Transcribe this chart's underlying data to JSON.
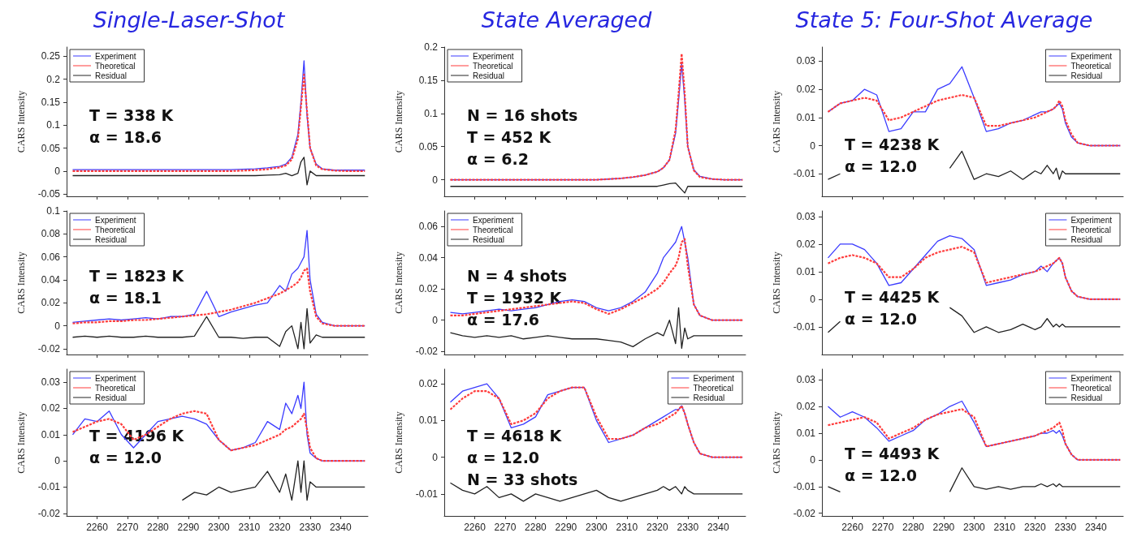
{
  "chart_data": [
    {
      "type": "line",
      "title": "Single-Laser-Shot",
      "ylabel": "CARS Intensity",
      "annotations": [
        "T = 338 K",
        "α = 18.6"
      ],
      "legend": "top left",
      "marker": "none",
      "grid": false,
      "tick_labels": "y",
      "x": [
        2252,
        2256,
        2260,
        2264,
        2268,
        2272,
        2276,
        2280,
        2284,
        2288,
        2292,
        2296,
        2300,
        2304,
        2308,
        2312,
        2316,
        2320,
        2322,
        2324,
        2326,
        2327,
        2328,
        2329,
        2330,
        2332,
        2334,
        2338,
        2342,
        2348
      ],
      "xlim": [
        2250,
        2349
      ],
      "xticks": [
        2260,
        2270,
        2280,
        2290,
        2300,
        2310,
        2320,
        2330,
        2340
      ],
      "ylim": [
        -0.055,
        0.27
      ],
      "yticks": [
        -0.05,
        0,
        0.05,
        0.1,
        0.15,
        0.2,
        0.25
      ],
      "series": [
        {
          "name": "Experiment",
          "color": "#3b3bff",
          "line_style": "solid",
          "values": [
            0.003,
            0.003,
            0.003,
            0.003,
            0.003,
            0.003,
            0.003,
            0.003,
            0.003,
            0.003,
            0.003,
            0.003,
            0.003,
            0.003,
            0.004,
            0.005,
            0.007,
            0.01,
            0.015,
            0.03,
            0.08,
            0.15,
            0.24,
            0.12,
            0.05,
            0.015,
            0.005,
            0.002,
            0.002,
            0.002
          ]
        },
        {
          "name": "Theoretical",
          "color": "#ff3b3b",
          "line_style": "dashed",
          "values": [
            0,
            0,
            0,
            0,
            0,
            0,
            0,
            0,
            0,
            0,
            0,
            0,
            0,
            0,
            0.001,
            0.002,
            0.004,
            0.008,
            0.012,
            0.025,
            0.07,
            0.14,
            0.21,
            0.13,
            0.05,
            0.012,
            0.004,
            0.001,
            0,
            0
          ]
        },
        {
          "name": "Residual",
          "color": "#222222",
          "line_style": "solid",
          "values": [
            -0.01,
            -0.01,
            -0.01,
            -0.01,
            -0.01,
            -0.01,
            -0.01,
            -0.01,
            -0.01,
            -0.01,
            -0.01,
            -0.01,
            -0.01,
            -0.01,
            -0.01,
            -0.01,
            -0.009,
            -0.008,
            -0.005,
            -0.01,
            -0.005,
            0.02,
            0.03,
            -0.03,
            0,
            -0.01,
            -0.01,
            -0.01,
            -0.01,
            -0.01
          ]
        }
      ]
    },
    {
      "type": "line",
      "title": "State Averaged",
      "ylabel": "CARS Intensity",
      "annotations": [
        "N = 16 shots",
        "T = 452 K",
        "α = 6.2"
      ],
      "legend": "top left",
      "marker": "none",
      "grid": false,
      "tick_labels": "y",
      "x": [
        2252,
        2256,
        2260,
        2264,
        2268,
        2272,
        2276,
        2280,
        2284,
        2288,
        2292,
        2296,
        2300,
        2304,
        2308,
        2312,
        2316,
        2320,
        2322,
        2324,
        2326,
        2327,
        2328,
        2329,
        2330,
        2332,
        2334,
        2338,
        2342,
        2348
      ],
      "xlim": [
        2250,
        2349
      ],
      "xticks": [
        2260,
        2270,
        2280,
        2290,
        2300,
        2310,
        2320,
        2330,
        2340
      ],
      "ylim": [
        -0.025,
        0.2
      ],
      "yticks": [
        0,
        0.05,
        0.1,
        0.15,
        0.2
      ],
      "series": [
        {
          "name": "Experiment",
          "color": "#3b3bff",
          "line_style": "solid",
          "values": [
            0,
            0,
            0,
            0,
            0,
            0,
            0,
            0,
            0,
            0,
            0,
            0,
            0,
            0.001,
            0.002,
            0.004,
            0.007,
            0.012,
            0.018,
            0.03,
            0.07,
            0.12,
            0.175,
            0.12,
            0.05,
            0.015,
            0.005,
            0.001,
            0,
            0
          ]
        },
        {
          "name": "Theoretical",
          "color": "#ff3b3b",
          "line_style": "dashed",
          "values": [
            0,
            0,
            0,
            0,
            0,
            0,
            0,
            0,
            0,
            0,
            0,
            0,
            0,
            0.001,
            0.002,
            0.004,
            0.007,
            0.012,
            0.018,
            0.03,
            0.075,
            0.13,
            0.19,
            0.13,
            0.05,
            0.014,
            0.004,
            0.001,
            0,
            0
          ]
        },
        {
          "name": "Residual",
          "color": "#222222",
          "line_style": "solid",
          "values": [
            -0.01,
            -0.01,
            -0.01,
            -0.01,
            -0.01,
            -0.01,
            -0.01,
            -0.01,
            -0.01,
            -0.01,
            -0.01,
            -0.01,
            -0.01,
            -0.01,
            -0.01,
            -0.01,
            -0.01,
            -0.01,
            -0.008,
            -0.006,
            -0.005,
            -0.01,
            -0.015,
            -0.02,
            -0.01,
            -0.01,
            -0.01,
            -0.01,
            -0.01,
            -0.01
          ]
        }
      ]
    },
    {
      "type": "line",
      "title": "State 5: Four-Shot Average",
      "ylabel": "CARS Intensity",
      "annotations": [
        "T = 4238 K",
        "α = 12.0"
      ],
      "legend": "top right",
      "marker": "none",
      "grid": false,
      "tick_labels": "y",
      "x": [
        2252,
        2256,
        2260,
        2264,
        2268,
        2272,
        2276,
        2280,
        2284,
        2288,
        2292,
        2296,
        2300,
        2304,
        2308,
        2312,
        2316,
        2320,
        2322,
        2324,
        2326,
        2327,
        2328,
        2329,
        2330,
        2332,
        2334,
        2338,
        2342,
        2348
      ],
      "xlim": [
        2250,
        2349
      ],
      "xticks": [
        2260,
        2270,
        2280,
        2290,
        2300,
        2310,
        2320,
        2330,
        2340
      ],
      "ylim": [
        -0.018,
        0.035
      ],
      "yticks": [
        -0.01,
        0,
        0.01,
        0.02,
        0.03
      ],
      "series": [
        {
          "name": "Experiment",
          "color": "#3b3bff",
          "line_style": "solid",
          "values": [
            0.012,
            0.015,
            0.016,
            0.02,
            0.018,
            0.005,
            0.006,
            0.012,
            0.012,
            0.02,
            0.022,
            0.028,
            0.017,
            0.005,
            0.006,
            0.008,
            0.009,
            0.011,
            0.012,
            0.012,
            0.013,
            0.014,
            0.015,
            0.013,
            0.008,
            0.003,
            0.001,
            0,
            0,
            0
          ]
        },
        {
          "name": "Theoretical",
          "color": "#ff3b3b",
          "line_style": "dashed",
          "values": [
            0.012,
            0.015,
            0.016,
            0.017,
            0.016,
            0.009,
            0.01,
            0.012,
            0.014,
            0.016,
            0.017,
            0.018,
            0.017,
            0.007,
            0.007,
            0.008,
            0.009,
            0.01,
            0.011,
            0.012,
            0.013,
            0.014,
            0.016,
            0.014,
            0.009,
            0.004,
            0.001,
            0,
            0,
            0
          ]
        },
        {
          "name": "Residual",
          "color": "#222222",
          "line_style": "solid",
          "values": [
            -0.012,
            -0.01,
            null,
            null,
            null,
            null,
            null,
            null,
            null,
            null,
            -0.008,
            -0.002,
            -0.012,
            -0.01,
            -0.011,
            -0.009,
            -0.012,
            -0.009,
            -0.01,
            -0.007,
            -0.01,
            -0.008,
            -0.012,
            -0.009,
            -0.01,
            -0.01,
            -0.01,
            -0.01,
            -0.01,
            -0.01
          ]
        }
      ]
    },
    {
      "type": "line",
      "ylabel": "CARS Intensity",
      "annotations": [
        "T = 1823 K",
        "α = 18.1"
      ],
      "legend": "top left",
      "marker": "none",
      "grid": false,
      "tick_labels": "y",
      "x": [
        2252,
        2256,
        2260,
        2264,
        2268,
        2272,
        2276,
        2280,
        2284,
        2288,
        2292,
        2296,
        2300,
        2304,
        2308,
        2312,
        2316,
        2320,
        2322,
        2324,
        2326,
        2327,
        2328,
        2329,
        2330,
        2332,
        2334,
        2338,
        2342,
        2348
      ],
      "xlim": [
        2250,
        2349
      ],
      "xticks": [
        2260,
        2270,
        2280,
        2290,
        2300,
        2310,
        2320,
        2330,
        2340
      ],
      "ylim": [
        -0.025,
        0.1
      ],
      "yticks": [
        -0.02,
        0,
        0.02,
        0.04,
        0.06,
        0.08,
        0.1
      ],
      "series": [
        {
          "name": "Experiment",
          "color": "#3b3bff",
          "line_style": "solid",
          "values": [
            0.003,
            0.004,
            0.005,
            0.006,
            0.005,
            0.006,
            0.007,
            0.006,
            0.008,
            0.008,
            0.01,
            0.03,
            0.008,
            0.012,
            0.015,
            0.018,
            0.02,
            0.035,
            0.03,
            0.045,
            0.05,
            0.055,
            0.06,
            0.083,
            0.04,
            0.01,
            0.003,
            0,
            0,
            0
          ]
        },
        {
          "name": "Theoretical",
          "color": "#ff3b3b",
          "line_style": "dashed",
          "values": [
            0.002,
            0.003,
            0.003,
            0.004,
            0.004,
            0.005,
            0.005,
            0.006,
            0.007,
            0.008,
            0.009,
            0.01,
            0.012,
            0.014,
            0.017,
            0.02,
            0.024,
            0.028,
            0.031,
            0.034,
            0.038,
            0.042,
            0.048,
            0.05,
            0.03,
            0.008,
            0.002,
            0,
            0,
            0
          ]
        },
        {
          "name": "Residual",
          "color": "#222222",
          "line_style": "solid",
          "values": [
            -0.01,
            -0.009,
            -0.01,
            -0.009,
            -0.01,
            -0.01,
            -0.009,
            -0.01,
            -0.01,
            -0.01,
            -0.009,
            0.008,
            -0.01,
            -0.01,
            -0.011,
            -0.01,
            -0.01,
            -0.018,
            -0.005,
            0,
            -0.02,
            0.003,
            -0.02,
            0.015,
            -0.015,
            -0.008,
            -0.01,
            -0.01,
            -0.01,
            -0.01
          ]
        }
      ]
    },
    {
      "type": "line",
      "ylabel": "CARS Intensity",
      "annotations": [
        "N = 4 shots",
        "T = 1932 K",
        "α = 17.6"
      ],
      "legend": "top left",
      "marker": "none",
      "grid": false,
      "tick_labels": "y",
      "x": [
        2252,
        2256,
        2260,
        2264,
        2268,
        2272,
        2276,
        2280,
        2284,
        2288,
        2292,
        2296,
        2300,
        2304,
        2308,
        2312,
        2316,
        2320,
        2322,
        2324,
        2326,
        2327,
        2328,
        2329,
        2330,
        2332,
        2334,
        2338,
        2342,
        2348
      ],
      "xlim": [
        2250,
        2349
      ],
      "xticks": [
        2260,
        2270,
        2280,
        2290,
        2300,
        2310,
        2320,
        2330,
        2340
      ],
      "ylim": [
        -0.022,
        0.07
      ],
      "yticks": [
        -0.02,
        0,
        0.02,
        0.04,
        0.06
      ],
      "series": [
        {
          "name": "Experiment",
          "color": "#3b3bff",
          "line_style": "solid",
          "values": [
            0.005,
            0.004,
            0.005,
            0.006,
            0.007,
            0.006,
            0.007,
            0.008,
            0.01,
            0.012,
            0.013,
            0.012,
            0.008,
            0.006,
            0.008,
            0.012,
            0.018,
            0.03,
            0.04,
            0.045,
            0.05,
            0.055,
            0.06,
            0.05,
            0.04,
            0.01,
            0.003,
            0,
            0,
            0
          ]
        },
        {
          "name": "Theoretical",
          "color": "#ff3b3b",
          "line_style": "dashed",
          "values": [
            0.003,
            0.003,
            0.004,
            0.005,
            0.006,
            0.007,
            0.008,
            0.009,
            0.01,
            0.011,
            0.012,
            0.011,
            0.007,
            0.004,
            0.007,
            0.011,
            0.015,
            0.02,
            0.024,
            0.03,
            0.035,
            0.04,
            0.05,
            0.052,
            0.035,
            0.01,
            0.003,
            0,
            0,
            0
          ]
        },
        {
          "name": "Residual",
          "color": "#222222",
          "line_style": "solid",
          "values": [
            -0.008,
            -0.01,
            -0.011,
            -0.01,
            -0.011,
            -0.01,
            -0.012,
            -0.011,
            -0.01,
            -0.011,
            -0.012,
            -0.012,
            -0.012,
            -0.013,
            -0.014,
            -0.017,
            -0.012,
            -0.008,
            -0.01,
            0,
            -0.015,
            0.008,
            -0.018,
            -0.005,
            -0.012,
            -0.01,
            -0.01,
            -0.01,
            -0.01,
            -0.01
          ]
        }
      ]
    },
    {
      "type": "line",
      "ylabel": "CARS Intensity",
      "annotations": [
        "T = 4425 K",
        "α = 12.0"
      ],
      "legend": "top right",
      "marker": "none",
      "grid": false,
      "tick_labels": "y",
      "x": [
        2252,
        2256,
        2260,
        2264,
        2268,
        2272,
        2276,
        2280,
        2284,
        2288,
        2292,
        2296,
        2300,
        2304,
        2308,
        2312,
        2316,
        2320,
        2322,
        2324,
        2326,
        2327,
        2328,
        2329,
        2330,
        2332,
        2334,
        2338,
        2342,
        2348
      ],
      "xlim": [
        2250,
        2349
      ],
      "xticks": [
        2260,
        2270,
        2280,
        2290,
        2300,
        2310,
        2320,
        2330,
        2340
      ],
      "ylim": [
        -0.02,
        0.032
      ],
      "yticks": [
        -0.01,
        0,
        0.01,
        0.02,
        0.03
      ],
      "series": [
        {
          "name": "Experiment",
          "color": "#3b3bff",
          "line_style": "solid",
          "values": [
            0.015,
            0.02,
            0.02,
            0.018,
            0.013,
            0.005,
            0.006,
            0.011,
            0.016,
            0.021,
            0.023,
            0.022,
            0.018,
            0.005,
            0.006,
            0.007,
            0.009,
            0.01,
            0.012,
            0.01,
            0.013,
            0.014,
            0.015,
            0.013,
            0.008,
            0.003,
            0.001,
            0,
            0,
            0
          ]
        },
        {
          "name": "Theoretical",
          "color": "#ff3b3b",
          "line_style": "dashed",
          "values": [
            0.013,
            0.015,
            0.016,
            0.015,
            0.013,
            0.008,
            0.008,
            0.011,
            0.015,
            0.017,
            0.018,
            0.019,
            0.017,
            0.006,
            0.007,
            0.008,
            0.009,
            0.01,
            0.011,
            0.012,
            0.013,
            0.014,
            0.015,
            0.013,
            0.008,
            0.003,
            0.001,
            0,
            0,
            0
          ]
        },
        {
          "name": "Residual",
          "color": "#222222",
          "line_style": "solid",
          "values": [
            -0.012,
            -0.008,
            null,
            null,
            null,
            null,
            null,
            null,
            null,
            null,
            -0.003,
            -0.006,
            -0.012,
            -0.01,
            -0.012,
            -0.011,
            -0.009,
            -0.011,
            -0.01,
            -0.007,
            -0.01,
            -0.009,
            -0.01,
            -0.009,
            -0.01,
            -0.01,
            -0.01,
            -0.01,
            -0.01,
            -0.01
          ]
        }
      ]
    },
    {
      "type": "line",
      "ylabel": "CARS Intensity",
      "annotations": [
        "T = 4196 K",
        "α = 12.0"
      ],
      "legend": "top left",
      "marker": "none",
      "grid": false,
      "x": [
        2252,
        2256,
        2260,
        2264,
        2268,
        2272,
        2276,
        2280,
        2284,
        2288,
        2292,
        2296,
        2300,
        2304,
        2308,
        2312,
        2316,
        2320,
        2322,
        2324,
        2326,
        2327,
        2328,
        2329,
        2330,
        2332,
        2334,
        2338,
        2342,
        2348
      ],
      "xlim": [
        2250,
        2349
      ],
      "xticks": [
        2260,
        2270,
        2280,
        2290,
        2300,
        2310,
        2320,
        2330,
        2340
      ],
      "ylim": [
        -0.021,
        0.035
      ],
      "yticks": [
        -0.02,
        -0.01,
        0,
        0.01,
        0.02,
        0.03
      ],
      "series": [
        {
          "name": "Experiment",
          "color": "#3b3bff",
          "line_style": "solid",
          "values": [
            0.01,
            0.016,
            0.015,
            0.019,
            0.01,
            0.005,
            0.01,
            0.015,
            0.016,
            0.017,
            0.016,
            0.014,
            0.008,
            0.004,
            0.005,
            0.007,
            0.015,
            0.012,
            0.022,
            0.018,
            0.025,
            0.02,
            0.03,
            0.01,
            0.003,
            0.001,
            0,
            0,
            0,
            0
          ]
        },
        {
          "name": "Theoretical",
          "color": "#ff3b3b",
          "line_style": "dashed",
          "values": [
            0.011,
            0.013,
            0.015,
            0.016,
            0.014,
            0.008,
            0.01,
            0.013,
            0.016,
            0.018,
            0.019,
            0.018,
            0.008,
            0.004,
            0.005,
            0.006,
            0.008,
            0.01,
            0.012,
            0.013,
            0.015,
            0.016,
            0.018,
            0.012,
            0.005,
            0.001,
            0,
            0,
            0,
            0
          ]
        },
        {
          "name": "Residual",
          "color": "#222222",
          "line_style": "solid",
          "values": [
            null,
            null,
            null,
            null,
            null,
            null,
            null,
            null,
            null,
            -0.015,
            -0.012,
            -0.013,
            -0.01,
            -0.012,
            -0.011,
            -0.01,
            -0.004,
            -0.012,
            -0.005,
            -0.015,
            0,
            -0.012,
            0,
            -0.015,
            -0.008,
            -0.01,
            -0.01,
            -0.01,
            -0.01,
            -0.01
          ]
        }
      ]
    },
    {
      "type": "line",
      "ylabel": "CARS Intensity",
      "annotations": [
        "T = 4618 K",
        "α = 12.0",
        "N = 33 shots"
      ],
      "legend": "top right",
      "marker": "none",
      "grid": false,
      "x": [
        2252,
        2256,
        2260,
        2264,
        2268,
        2272,
        2276,
        2280,
        2284,
        2288,
        2292,
        2296,
        2300,
        2304,
        2308,
        2312,
        2316,
        2320,
        2322,
        2324,
        2326,
        2327,
        2328,
        2329,
        2330,
        2332,
        2334,
        2338,
        2342,
        2348
      ],
      "xlim": [
        2250,
        2349
      ],
      "xticks": [
        2260,
        2270,
        2280,
        2290,
        2300,
        2310,
        2320,
        2330,
        2340
      ],
      "ylim": [
        -0.016,
        0.024
      ],
      "yticks": [
        -0.01,
        0,
        0.01,
        0.02
      ],
      "series": [
        {
          "name": "Experiment",
          "color": "#3b3bff",
          "line_style": "solid",
          "values": [
            0.015,
            0.018,
            0.019,
            0.02,
            0.016,
            0.008,
            0.009,
            0.011,
            0.017,
            0.018,
            0.019,
            0.019,
            0.01,
            0.004,
            0.005,
            0.006,
            0.008,
            0.01,
            0.011,
            0.012,
            0.013,
            0.013,
            0.014,
            0.012,
            0.009,
            0.004,
            0.001,
            0,
            0,
            0
          ]
        },
        {
          "name": "Theoretical",
          "color": "#ff3b3b",
          "line_style": "dashed",
          "values": [
            0.013,
            0.016,
            0.018,
            0.018,
            0.016,
            0.009,
            0.01,
            0.012,
            0.016,
            0.018,
            0.019,
            0.019,
            0.011,
            0.005,
            0.005,
            0.006,
            0.008,
            0.009,
            0.01,
            0.011,
            0.012,
            0.013,
            0.014,
            0.012,
            0.009,
            0.004,
            0.001,
            0,
            0,
            0
          ]
        },
        {
          "name": "Residual",
          "color": "#222222",
          "line_style": "solid",
          "values": [
            -0.007,
            -0.009,
            -0.01,
            -0.008,
            -0.011,
            -0.01,
            -0.012,
            -0.01,
            -0.011,
            -0.012,
            -0.011,
            -0.01,
            -0.009,
            -0.011,
            -0.012,
            -0.011,
            -0.01,
            -0.009,
            -0.008,
            -0.009,
            -0.008,
            -0.009,
            -0.01,
            -0.008,
            -0.009,
            -0.01,
            -0.01,
            -0.01,
            -0.01,
            -0.01
          ]
        }
      ]
    },
    {
      "type": "line",
      "ylabel": "CARS Intensity",
      "annotations": [
        "T = 4493 K",
        "α = 12.0"
      ],
      "legend": "top right",
      "marker": "none",
      "grid": false,
      "x": [
        2252,
        2256,
        2260,
        2264,
        2268,
        2272,
        2276,
        2280,
        2284,
        2288,
        2292,
        2296,
        2300,
        2304,
        2308,
        2312,
        2316,
        2320,
        2322,
        2324,
        2326,
        2327,
        2328,
        2329,
        2330,
        2332,
        2334,
        2338,
        2342,
        2348
      ],
      "xlim": [
        2250,
        2349
      ],
      "xticks": [
        2260,
        2270,
        2280,
        2290,
        2300,
        2310,
        2320,
        2330,
        2340
      ],
      "ylim": [
        -0.021,
        0.034
      ],
      "yticks": [
        -0.02,
        -0.01,
        0,
        0.01,
        0.02,
        0.03
      ],
      "series": [
        {
          "name": "Experiment",
          "color": "#3b3bff",
          "line_style": "solid",
          "values": [
            0.02,
            0.016,
            0.018,
            0.016,
            0.012,
            0.007,
            0.009,
            0.011,
            0.015,
            0.017,
            0.02,
            0.022,
            0.014,
            0.005,
            0.006,
            0.007,
            0.008,
            0.009,
            0.01,
            0.01,
            0.011,
            0.01,
            0.011,
            0.009,
            0.006,
            0.002,
            0,
            0,
            0,
            0
          ]
        },
        {
          "name": "Theoretical",
          "color": "#ff3b3b",
          "line_style": "dashed",
          "values": [
            0.013,
            0.014,
            0.015,
            0.016,
            0.014,
            0.008,
            0.01,
            0.012,
            0.015,
            0.017,
            0.018,
            0.019,
            0.016,
            0.005,
            0.006,
            0.007,
            0.008,
            0.009,
            0.01,
            0.011,
            0.012,
            0.013,
            0.014,
            0.011,
            0.006,
            0.002,
            0,
            0,
            0,
            0
          ]
        },
        {
          "name": "Residual",
          "color": "#222222",
          "line_style": "solid",
          "values": [
            -0.01,
            -0.012,
            null,
            null,
            null,
            null,
            null,
            null,
            null,
            null,
            -0.012,
            -0.003,
            -0.01,
            -0.011,
            -0.01,
            -0.011,
            -0.01,
            -0.01,
            -0.009,
            -0.01,
            -0.009,
            -0.01,
            -0.009,
            -0.01,
            -0.01,
            -0.01,
            -0.01,
            -0.01,
            -0.01,
            -0.01
          ]
        }
      ]
    }
  ]
}
